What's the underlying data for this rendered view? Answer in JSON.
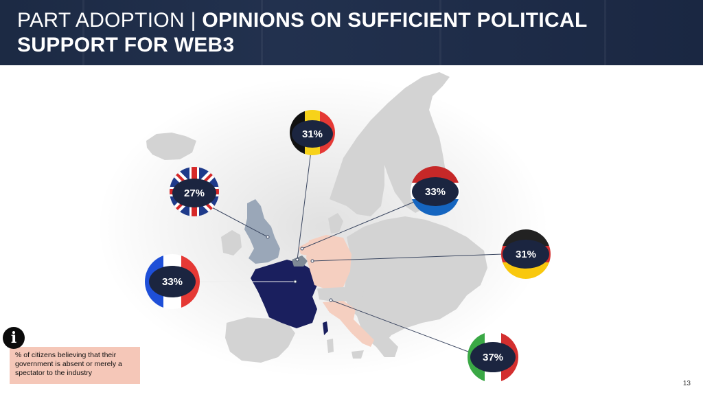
{
  "header": {
    "title_light": "PART ADOPTION | ",
    "title_bold_line1": "OPINIONS ON SUFFICIENT POLITICAL",
    "title_bold_line2": "SUPPORT FOR WEB3"
  },
  "countries": [
    {
      "name": "Belgium",
      "value": "31%"
    },
    {
      "name": "United Kingdom",
      "value": "27%"
    },
    {
      "name": "Netherlands",
      "value": "33%"
    },
    {
      "name": "Germany",
      "value": "31%"
    },
    {
      "name": "France",
      "value": "33%"
    },
    {
      "name": "Italy",
      "value": "37%"
    }
  ],
  "legend": {
    "text": "% of citizens believing that their government is absent or merely a spectator to the industry",
    "icon": "info-icon"
  },
  "page_number": "13",
  "colors": {
    "header_bg": "#1c2a44",
    "bubble_fill": "#1b2540",
    "map_grey": "#d3d3d3",
    "france": "#1a1f5e",
    "uk": "#9aa7b8",
    "highlight_pink": "#f5cfc0",
    "legend_bg": "#f5c7b8"
  }
}
